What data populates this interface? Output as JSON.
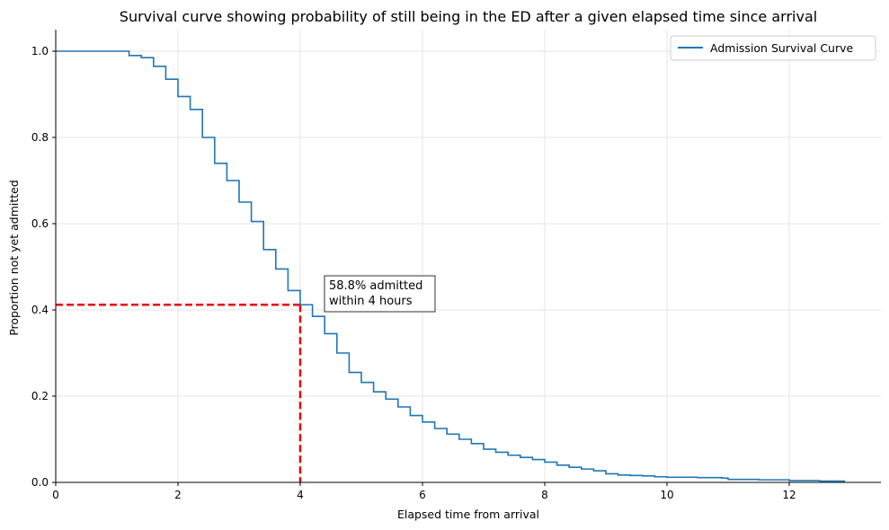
{
  "chart_data": {
    "type": "line",
    "title": "Survival curve showing probability of still being in the ED after a given elapsed time since arrival",
    "xlabel": "Elapsed time from arrival",
    "ylabel": "Proportion not yet admitted",
    "xlim": [
      0,
      13.5
    ],
    "ylim": [
      0,
      1.05
    ],
    "x_ticks": [
      0,
      2,
      4,
      6,
      8,
      10,
      12
    ],
    "y_ticks": [
      0.0,
      0.2,
      0.4,
      0.6,
      0.8,
      1.0
    ],
    "grid": true,
    "legend_position": "top-right",
    "series": [
      {
        "name": "Admission Survival Curve",
        "color": "#1f77b4",
        "step": true,
        "x": [
          0,
          1.1,
          1.2,
          1.4,
          1.6,
          1.8,
          2.0,
          2.2,
          2.4,
          2.6,
          2.8,
          3.0,
          3.2,
          3.4,
          3.6,
          3.8,
          4.0,
          4.2,
          4.4,
          4.6,
          4.8,
          5.0,
          5.2,
          5.4,
          5.6,
          5.8,
          6.0,
          6.2,
          6.4,
          6.6,
          6.8,
          7.0,
          7.2,
          7.4,
          7.6,
          7.8,
          8.0,
          8.2,
          8.4,
          8.6,
          8.8,
          9.0,
          9.2,
          9.4,
          9.6,
          9.8,
          10.0,
          10.5,
          10.9,
          11.0,
          11.5,
          12.0,
          12.5,
          12.9
        ],
        "y": [
          1.0,
          1.0,
          0.99,
          0.985,
          0.965,
          0.935,
          0.895,
          0.865,
          0.8,
          0.74,
          0.7,
          0.65,
          0.605,
          0.54,
          0.495,
          0.445,
          0.412,
          0.385,
          0.345,
          0.3,
          0.255,
          0.232,
          0.21,
          0.193,
          0.175,
          0.155,
          0.14,
          0.125,
          0.112,
          0.1,
          0.09,
          0.077,
          0.07,
          0.063,
          0.058,
          0.053,
          0.047,
          0.04,
          0.035,
          0.031,
          0.027,
          0.02,
          0.017,
          0.016,
          0.015,
          0.013,
          0.012,
          0.011,
          0.01,
          0.007,
          0.006,
          0.004,
          0.003,
          0.0
        ]
      }
    ],
    "annotations": {
      "text_line1": "58.8% admitted",
      "text_line2": "within 4 hours",
      "anchor": [
        4.5,
        0.41
      ],
      "reference_lines": {
        "x": 4,
        "y": 0.412,
        "color": "#e8000b",
        "style": "dashed"
      }
    }
  }
}
